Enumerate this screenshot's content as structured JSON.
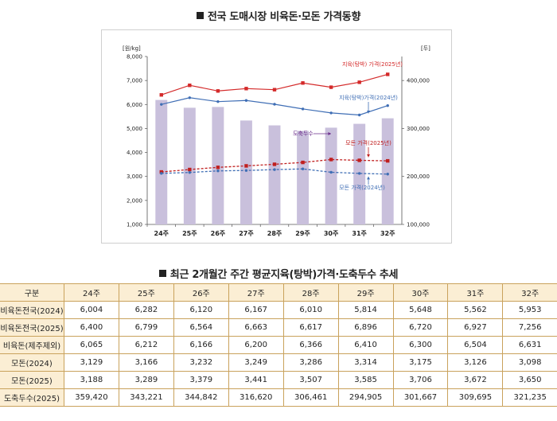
{
  "chart_title": "전국 도매시장 비육돈·모돈 가격동향",
  "table_title": "최근 2개월간 주간 평균지육(탕박)가격·도축두수 추세",
  "chart_data": {
    "type": "bar+line",
    "categories": [
      "24주",
      "25주",
      "26주",
      "27주",
      "28주",
      "29주",
      "30주",
      "31주",
      "32주"
    ],
    "y_left_label": "[원/kg]",
    "y_left_ticks": [
      "1,000",
      "2,000",
      "3,000",
      "4,000",
      "5,000",
      "6,000",
      "7,000",
      "8,000"
    ],
    "y_left_range": [
      1000,
      8000
    ],
    "y_right_label": "[두]",
    "y_right_ticks": [
      "100,000",
      "200,000",
      "300,000",
      "400,000"
    ],
    "y_right_range": [
      100000,
      450000
    ],
    "grid": false,
    "bars": {
      "name": "도축두수",
      "axis": "right",
      "color": "#c9c0dc",
      "values": [
        359420,
        343221,
        344842,
        316620,
        306461,
        294905,
        301667,
        309695,
        321235
      ]
    },
    "series": [
      {
        "name": "지육(탕박) 가격(2025년)",
        "values": [
          6400,
          6799,
          6564,
          6663,
          6617,
          6896,
          6720,
          6927,
          7256
        ],
        "color": "#d42a2a",
        "style": "solid",
        "marker": "square"
      },
      {
        "name": "지육(탕박)가격(2024년)",
        "values": [
          6004,
          6282,
          6120,
          6167,
          6010,
          5814,
          5648,
          5562,
          5953
        ],
        "color": "#3f6eb5",
        "style": "solid",
        "marker": "dot"
      },
      {
        "name": "모돈 가격(2025년)",
        "values": [
          3188,
          3289,
          3379,
          3441,
          3507,
          3585,
          3706,
          3672,
          3650
        ],
        "color": "#c01f1f",
        "style": "dashed",
        "marker": "square"
      },
      {
        "name": "모돈 가격(2024년)",
        "values": [
          3129,
          3166,
          3232,
          3249,
          3286,
          3314,
          3175,
          3126,
          3098
        ],
        "color": "#3f6eb5",
        "style": "dashed",
        "marker": "dot"
      }
    ],
    "annotations": [
      {
        "text": "지육(탕박) 가격(2025년)",
        "color": "#d42a2a"
      },
      {
        "text": "지육(탕박)가격(2024년)",
        "color": "#3f6eb5"
      },
      {
        "text": "도축두수",
        "color": "#6a2c8a"
      },
      {
        "text": "모돈 가격(2025년)",
        "color": "#c01f1f"
      },
      {
        "text": "모돈 가격(2024년)",
        "color": "#3f6eb5"
      }
    ]
  },
  "table": {
    "header": [
      "구분",
      "24주",
      "25주",
      "26주",
      "27주",
      "28주",
      "29주",
      "30주",
      "31주",
      "32주"
    ],
    "rows": [
      [
        "비육돈전국(2024)",
        "6,004",
        "6,282",
        "6,120",
        "6,167",
        "6,010",
        "5,814",
        "5,648",
        "5,562",
        "5,953"
      ],
      [
        "비육돈전국(2025)",
        "6,400",
        "6,799",
        "6,564",
        "6,663",
        "6,617",
        "6,896",
        "6,720",
        "6,927",
        "7,256"
      ],
      [
        "비육돈(제주제외)",
        "6,065",
        "6,212",
        "6,166",
        "6,200",
        "6,366",
        "6,410",
        "6,300",
        "6,504",
        "6,631"
      ],
      [
        "모돈(2024)",
        "3,129",
        "3,166",
        "3,232",
        "3,249",
        "3,286",
        "3,314",
        "3,175",
        "3,126",
        "3,098"
      ],
      [
        "모돈(2025)",
        "3,188",
        "3,289",
        "3,379",
        "3,441",
        "3,507",
        "3,585",
        "3,706",
        "3,672",
        "3,650"
      ],
      [
        "도축두수(2025)",
        "359,420",
        "343,221",
        "344,842",
        "316,620",
        "306,461",
        "294,905",
        "301,667",
        "309,695",
        "321,235"
      ]
    ]
  }
}
